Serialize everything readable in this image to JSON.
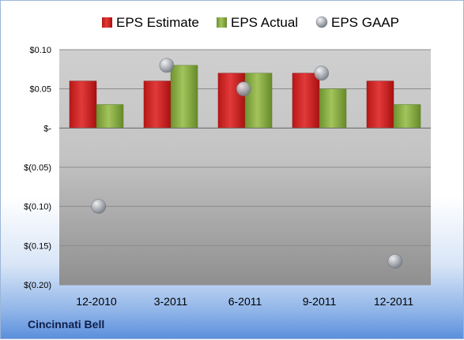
{
  "company": "Cincinnati Bell",
  "colors": {
    "estimate": "#d52a2a",
    "actual": "#8fb345",
    "gaap": "#b9bec6"
  },
  "chart_data": {
    "type": "bar",
    "categories": [
      "12-2010",
      "3-2011",
      "6-2011",
      "9-2011",
      "12-2011"
    ],
    "series": [
      {
        "name": "EPS Estimate",
        "kind": "bar",
        "values": [
          0.06,
          0.06,
          0.07,
          0.07,
          0.06
        ]
      },
      {
        "name": "EPS Actual",
        "kind": "bar",
        "values": [
          0.03,
          0.08,
          0.07,
          0.05,
          0.03
        ]
      },
      {
        "name": "EPS GAAP",
        "kind": "scatter",
        "values": [
          -0.1,
          0.08,
          0.05,
          0.07,
          -0.17
        ]
      }
    ],
    "ylim": [
      -0.2,
      0.1
    ],
    "yticks": [
      0.1,
      0.05,
      0.0,
      -0.05,
      -0.1,
      -0.15,
      -0.2
    ],
    "ytick_labels": [
      "$0.10",
      "$0.05",
      "$-",
      "$(0.05)",
      "$(0.10)",
      "$(0.15)",
      "$(0.20)"
    ],
    "legend_position": "top",
    "grid": true
  }
}
